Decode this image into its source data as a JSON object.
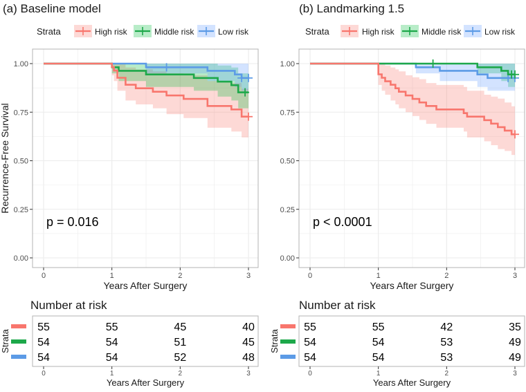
{
  "colors": {
    "high": "#F8766D",
    "middle": "#1DA84A",
    "low": "#5C9BE6",
    "high_band": "#F8766D",
    "middle_band": "#00BA38",
    "low_band": "#619CFF",
    "panel_border": "#B3B3B3",
    "grid": "#EBEBEB",
    "text": "#1A1A1A",
    "axis_text": "#4D4D4D"
  },
  "chart_data": [
    {
      "type": "line",
      "subtype": "kaplan-meier",
      "title": "(a) Baseline model",
      "legend": {
        "title": "Strata",
        "entries": [
          "High risk",
          "Middle risk",
          "Low risk"
        ]
      },
      "xlabel": "Years After Surgery",
      "ylabel": "Recurrence-Free Survival",
      "xlim": [
        0,
        3
      ],
      "ylim": [
        0,
        1
      ],
      "xticks": [
        "0",
        "1",
        "2",
        "3"
      ],
      "yticks": [
        "0.00",
        "0.25",
        "0.50",
        "0.75",
        "1.00"
      ],
      "annotation": "p = 0.016",
      "series": [
        {
          "name": "High risk",
          "color_key": "high",
          "steps": [
            [
              0,
              1.0
            ],
            [
              1.0,
              0.982
            ],
            [
              1.03,
              0.964
            ],
            [
              1.08,
              0.927
            ],
            [
              1.2,
              0.891
            ],
            [
              1.35,
              0.873
            ],
            [
              1.6,
              0.855
            ],
            [
              1.8,
              0.836
            ],
            [
              2.05,
              0.818
            ],
            [
              2.4,
              0.782
            ],
            [
              2.75,
              0.764
            ],
            [
              2.9,
              0.727
            ],
            [
              3.0,
              0.727
            ]
          ],
          "lower": [
            1,
            0.94,
            0.91,
            0.86,
            0.81,
            0.79,
            0.77,
            0.74,
            0.72,
            0.67,
            0.65,
            0.62,
            0.62
          ],
          "upper": [
            1,
            1.0,
            1.0,
            1.0,
            0.98,
            0.97,
            0.96,
            0.95,
            0.94,
            0.91,
            0.9,
            0.87,
            0.87
          ],
          "censor": [
            [
              3.0,
              0.727
            ]
          ]
        },
        {
          "name": "Middle risk",
          "color_key": "middle",
          "steps": [
            [
              0,
              1.0
            ],
            [
              1.0,
              0.981
            ],
            [
              1.1,
              0.963
            ],
            [
              1.5,
              0.944
            ],
            [
              2.2,
              0.926
            ],
            [
              2.55,
              0.907
            ],
            [
              2.75,
              0.889
            ],
            [
              2.85,
              0.852
            ],
            [
              3.0,
              0.852
            ]
          ],
          "lower": [
            1,
            0.95,
            0.91,
            0.88,
            0.86,
            0.83,
            0.81,
            0.77,
            0.77
          ],
          "upper": [
            1,
            1.0,
            1.0,
            1.0,
            1.0,
            0.99,
            0.98,
            0.95,
            0.95
          ],
          "censor": [
            [
              2.95,
              0.852
            ]
          ]
        },
        {
          "name": "Low risk",
          "color_key": "low",
          "steps": [
            [
              0,
              1.0
            ],
            [
              1.5,
              0.981
            ],
            [
              2.4,
              0.963
            ],
            [
              2.8,
              0.944
            ],
            [
              2.9,
              0.926
            ],
            [
              3.0,
              0.926
            ]
          ],
          "lower": [
            1,
            0.95,
            0.91,
            0.88,
            0.86,
            0.86
          ],
          "upper": [
            1,
            1.0,
            1.0,
            1.0,
            1.0,
            1.0
          ],
          "censor": [
            [
              1.8,
              0.981
            ],
            [
              2.9,
              0.926
            ],
            [
              3.0,
              0.926
            ]
          ]
        }
      ],
      "risk_table": {
        "title": "Number at risk",
        "ylabel": "Strata",
        "xlabel": "Years After Surgery",
        "xticks": [
          "0",
          "1",
          "2",
          "3"
        ],
        "rows": [
          {
            "color_key": "high",
            "values": [
              "55",
              "55",
              "45",
              "40"
            ]
          },
          {
            "color_key": "middle",
            "values": [
              "54",
              "54",
              "51",
              "45"
            ]
          },
          {
            "color_key": "low",
            "values": [
              "54",
              "54",
              "52",
              "48"
            ]
          }
        ]
      }
    },
    {
      "type": "line",
      "subtype": "kaplan-meier",
      "title": "(b) Landmarking 1.5",
      "legend": {
        "title": "Strata",
        "entries": [
          "High risk",
          "Middle risk",
          "Low risk"
        ]
      },
      "xlabel": "Years After Surgery",
      "ylabel": "",
      "xlim": [
        0,
        3
      ],
      "ylim": [
        0,
        1
      ],
      "xticks": [
        "0",
        "1",
        "2",
        "3"
      ],
      "yticks": [
        "0.00",
        "0.25",
        "0.50",
        "0.75",
        "1.00"
      ],
      "annotation": "p < 0.0001",
      "series": [
        {
          "name": "High risk",
          "color_key": "high",
          "steps": [
            [
              0,
              1.0
            ],
            [
              1.0,
              0.945
            ],
            [
              1.05,
              0.927
            ],
            [
              1.1,
              0.909
            ],
            [
              1.18,
              0.891
            ],
            [
              1.25,
              0.873
            ],
            [
              1.3,
              0.855
            ],
            [
              1.4,
              0.836
            ],
            [
              1.5,
              0.818
            ],
            [
              1.6,
              0.8
            ],
            [
              1.7,
              0.782
            ],
            [
              1.85,
              0.764
            ],
            [
              2.25,
              0.745
            ],
            [
              2.3,
              0.727
            ],
            [
              2.55,
              0.709
            ],
            [
              2.65,
              0.691
            ],
            [
              2.75,
              0.673
            ],
            [
              2.85,
              0.655
            ],
            [
              2.95,
              0.636
            ],
            [
              3.0,
              0.636
            ]
          ],
          "lower": [
            1,
            0.89,
            0.86,
            0.84,
            0.81,
            0.79,
            0.77,
            0.75,
            0.73,
            0.71,
            0.69,
            0.67,
            0.65,
            0.62,
            0.6,
            0.58,
            0.56,
            0.55,
            0.53,
            0.53
          ],
          "upper": [
            1,
            1.0,
            1.0,
            0.99,
            0.98,
            0.97,
            0.96,
            0.94,
            0.93,
            0.92,
            0.9,
            0.89,
            0.88,
            0.86,
            0.84,
            0.83,
            0.82,
            0.8,
            0.78,
            0.78
          ],
          "censor": [
            [
              3.0,
              0.636
            ]
          ]
        },
        {
          "name": "Middle risk",
          "color_key": "middle",
          "steps": [
            [
              0,
              1.0
            ],
            [
              2.45,
              0.981
            ],
            [
              2.8,
              0.963
            ],
            [
              2.9,
              0.944
            ],
            [
              3.0,
              0.944
            ]
          ],
          "lower": [
            1,
            0.95,
            0.91,
            0.88,
            0.88
          ],
          "upper": [
            1,
            1.0,
            1.0,
            1.0,
            1.0
          ],
          "censor": [
            [
              1.8,
              1.0
            ],
            [
              2.95,
              0.944
            ],
            [
              3.0,
              0.944
            ]
          ]
        },
        {
          "name": "Low risk",
          "color_key": "low",
          "steps": [
            [
              0,
              1.0
            ],
            [
              1.55,
              0.981
            ],
            [
              1.9,
              0.963
            ],
            [
              2.45,
              0.944
            ],
            [
              2.6,
              0.926
            ],
            [
              3.0,
              0.926
            ]
          ],
          "lower": [
            1,
            0.95,
            0.91,
            0.88,
            0.86,
            0.86
          ],
          "upper": [
            1,
            1.0,
            1.0,
            1.0,
            1.0,
            1.0
          ],
          "censor": [
            [
              2.9,
              0.926
            ],
            [
              3.0,
              0.926
            ]
          ]
        }
      ],
      "risk_table": {
        "title": "Number at risk",
        "ylabel": "Strata",
        "xlabel": "Years After Surgery",
        "xticks": [
          "0",
          "1",
          "2",
          "3"
        ],
        "rows": [
          {
            "color_key": "high",
            "values": [
              "55",
              "55",
              "42",
              "35"
            ]
          },
          {
            "color_key": "middle",
            "values": [
              "54",
              "54",
              "53",
              "49"
            ]
          },
          {
            "color_key": "low",
            "values": [
              "54",
              "54",
              "53",
              "49"
            ]
          }
        ]
      }
    }
  ]
}
